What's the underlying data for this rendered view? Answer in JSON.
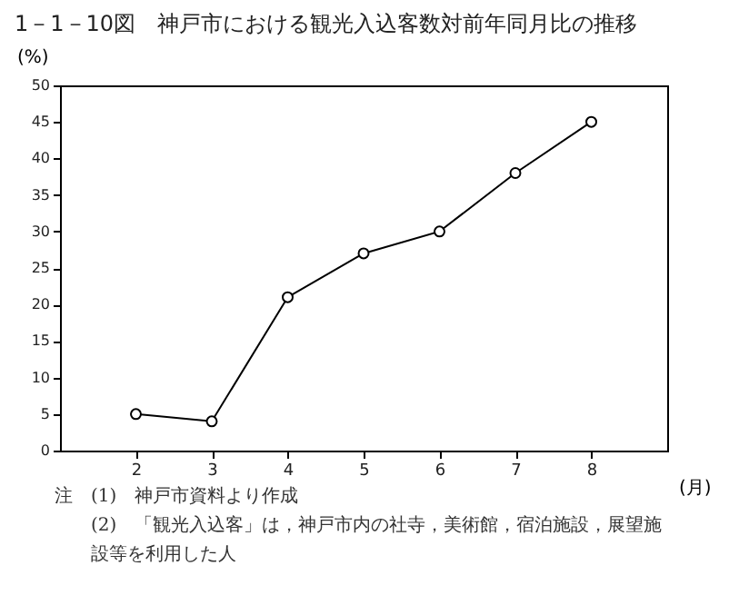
{
  "chart_data": {
    "type": "line",
    "title": "1－1－10図　神戸市における観光入込客数対前年同月比の推移",
    "x": [
      2,
      3,
      4,
      5,
      6,
      7,
      8
    ],
    "series": [
      {
        "color": "#000000",
        "values": [
          5,
          4,
          21,
          27,
          30,
          38,
          45
        ]
      }
    ],
    "xlim": [
      1,
      9
    ],
    "xticks": [
      2,
      3,
      4,
      5,
      6,
      7,
      8
    ],
    "ylim": [
      0,
      50
    ],
    "yticks": [
      0,
      5,
      10,
      15,
      20,
      25,
      30,
      35,
      40,
      45,
      50
    ],
    "xlabel": "(月)",
    "ylabel": "(%)",
    "marker": "circle",
    "line_style": "solid",
    "annotations": [
      "注　(1)　神戸市資料より作成",
      "(2)　「観光入込客」は，神戸市内の社寺，美術館，宿泊施設，展望施設等を利用した人"
    ]
  }
}
